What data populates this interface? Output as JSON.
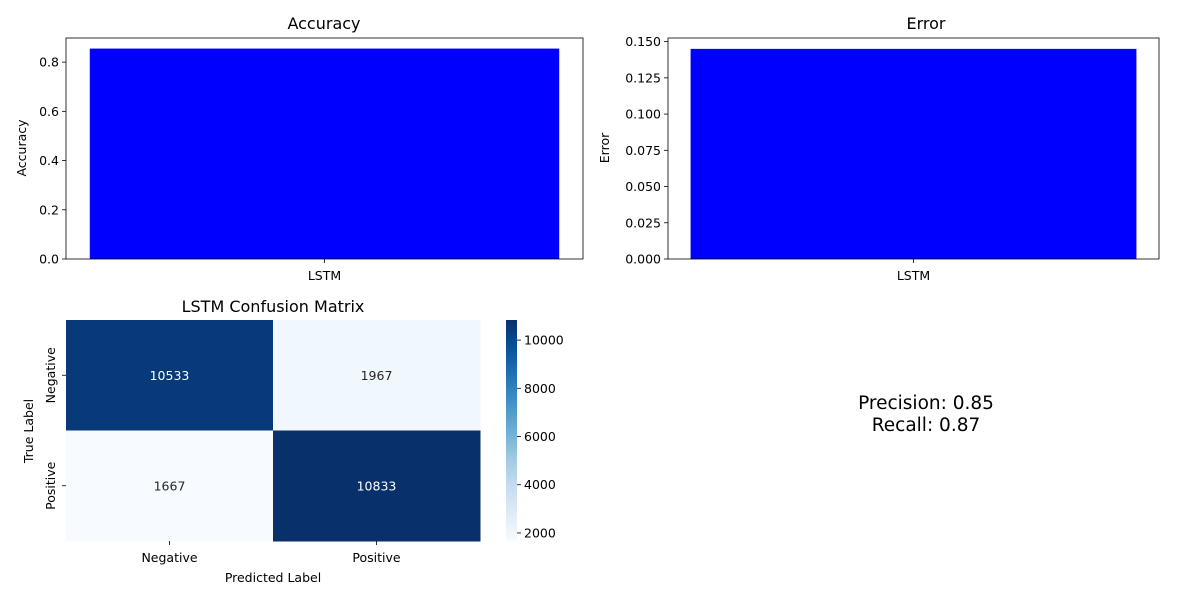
{
  "colors": {
    "bar": "#0000ff",
    "cm_low": "#f7fbff",
    "cm_high": "#08306b"
  },
  "chart_data": [
    {
      "type": "bar",
      "title": "Accuracy",
      "xlabel": "",
      "ylabel": "Accuracy",
      "categories": [
        "LSTM"
      ],
      "values": [
        0.855
      ],
      "ylim": [
        0,
        0.898
      ],
      "yticks": [
        0.0,
        0.2,
        0.4,
        0.6,
        0.8
      ],
      "ytick_labels": [
        "0.0",
        "0.2",
        "0.4",
        "0.6",
        "0.8"
      ],
      "grid": false
    },
    {
      "type": "bar",
      "title": "Error",
      "xlabel": "",
      "ylabel": "Error",
      "categories": [
        "LSTM"
      ],
      "values": [
        0.145
      ],
      "ylim": [
        0,
        0.1525
      ],
      "yticks": [
        0.0,
        0.025,
        0.05,
        0.075,
        0.1,
        0.125,
        0.15
      ],
      "ytick_labels": [
        "0.000",
        "0.025",
        "0.050",
        "0.075",
        "0.100",
        "0.125",
        "0.150"
      ],
      "grid": false
    },
    {
      "type": "heatmap",
      "title": "LSTM Confusion Matrix",
      "xlabel": "Predicted Label",
      "ylabel": "True Label",
      "x_categories": [
        "Negative",
        "Positive"
      ],
      "y_categories": [
        "Negative",
        "Positive"
      ],
      "values": [
        [
          10533,
          1967
        ],
        [
          1667,
          10833
        ]
      ],
      "value_labels": [
        [
          "10533",
          "1967"
        ],
        [
          "1667",
          "10833"
        ]
      ],
      "colorbar": {
        "min": 1667,
        "max": 10833,
        "ticks": [
          2000,
          4000,
          6000,
          8000,
          10000
        ],
        "tick_labels": [
          "2000",
          "4000",
          "6000",
          "8000",
          "10000"
        ]
      }
    }
  ],
  "metrics": {
    "precision": "Precision: 0.85",
    "recall": "Recall: 0.87"
  }
}
